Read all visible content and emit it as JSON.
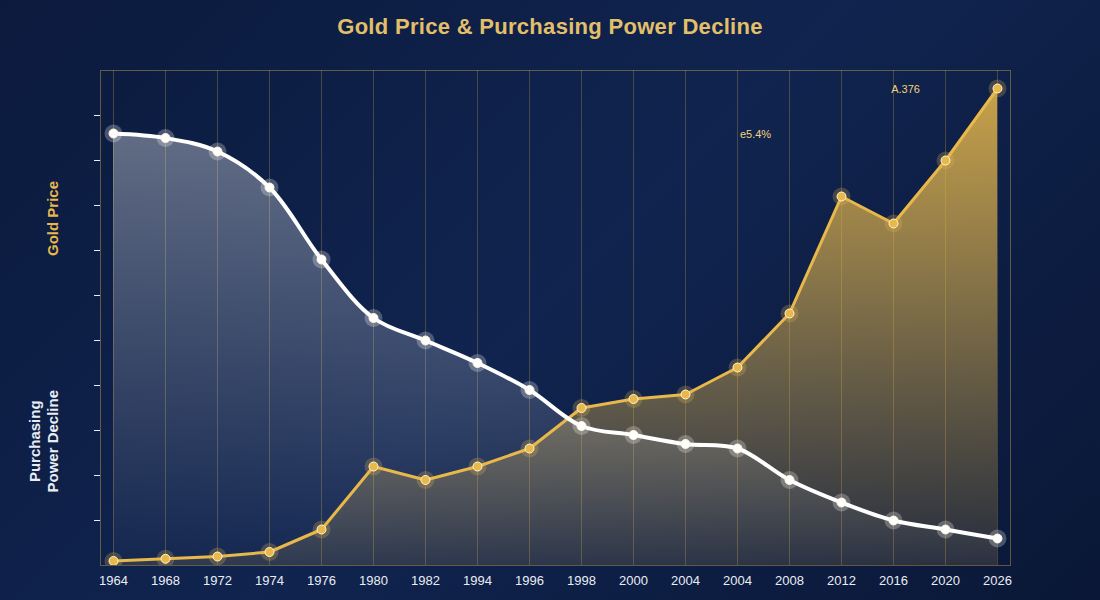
{
  "chart_data": {
    "type": "line",
    "title": "Gold Price & Purchasing Power Decline",
    "categories": [
      "1964",
      "1968",
      "1972",
      "1974",
      "1976",
      "1980",
      "1982",
      "1994",
      "1996",
      "1998",
      "2000",
      "2004",
      "2004",
      "2008",
      "2012",
      "2016",
      "2020",
      "2026"
    ],
    "series": [
      {
        "name": "Gold Price",
        "color": "#e8b84a",
        "marker": "circle",
        "values": [
          1,
          1.5,
          2,
          3,
          8,
          22,
          19,
          22,
          26,
          35,
          37,
          38,
          44,
          56,
          82,
          76,
          90,
          106
        ]
      },
      {
        "name": "Purchasing Power Decline",
        "color": "#ffffff",
        "marker": "circle",
        "values": [
          96,
          95,
          92,
          84,
          68,
          55,
          50,
          45,
          39,
          31,
          29,
          27,
          26,
          19,
          14,
          10,
          8,
          6
        ]
      }
    ],
    "ylim": [
      0,
      110
    ],
    "yticks": [
      10,
      20,
      30,
      40,
      50,
      60,
      70,
      80,
      90,
      100
    ],
    "grid": true,
    "tick_labels": "x",
    "annotations": [
      "e5.4%",
      "A.376"
    ]
  }
}
